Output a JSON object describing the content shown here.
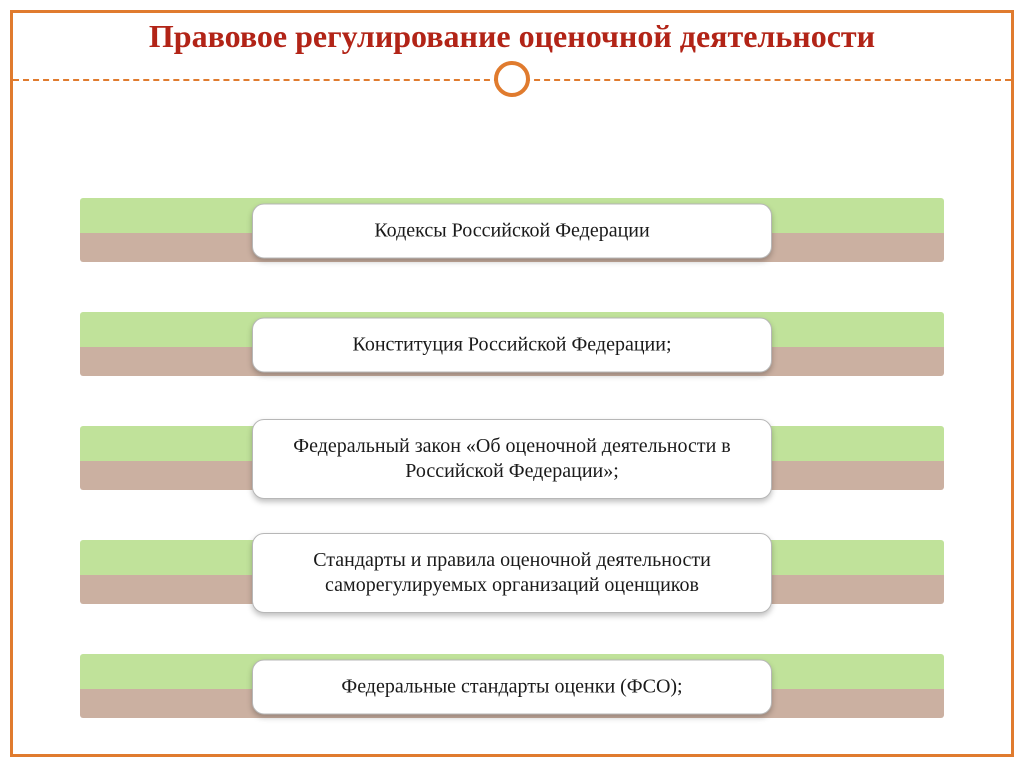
{
  "title": "Правовое регулирование оценочной деятельности",
  "title_color": "#b22417",
  "title_fontsize": 32,
  "frame_color": "#e07b2e",
  "circle": {
    "size": 36,
    "border_width": 4
  },
  "band": {
    "top_color": "#c0e29a",
    "bottom_color": "#cbb0a1",
    "height": 64
  },
  "pill": {
    "background": "#ffffff",
    "border_color": "#b7b7b7",
    "text_color": "#1a1a1a",
    "fontsize": 20
  },
  "items": [
    {
      "label": "Кодексы Российской Федерации"
    },
    {
      "label": "Конституция Российской Федерации;"
    },
    {
      "label": "Федеральный закон «Об оценочной деятельности в Российской Федерации»;"
    },
    {
      "label": "Стандарты и правила оценочной деятельности саморегулируемых организаций оценщиков"
    },
    {
      "label": "Федеральные стандарты оценки (ФСО);"
    }
  ]
}
